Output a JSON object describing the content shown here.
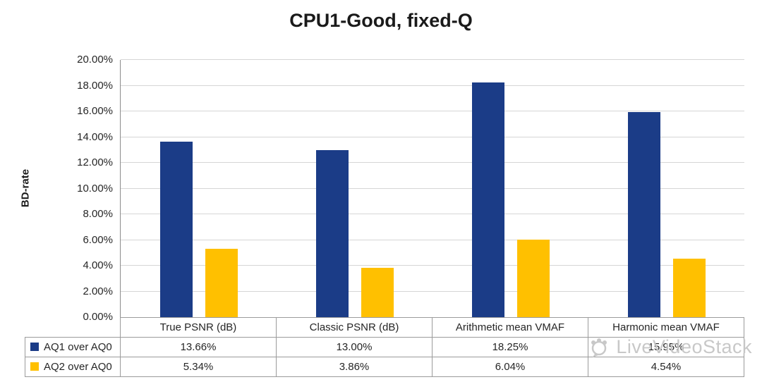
{
  "chart_data": {
    "type": "bar",
    "title": "CPU1-Good, fixed-Q",
    "xlabel": "",
    "ylabel": "BD-rate",
    "categories": [
      "True PSNR (dB)",
      "Classic PSNR (dB)",
      "Arithmetic mean VMAF",
      "Harmonic mean VMAF"
    ],
    "series": [
      {
        "name": "AQ1 over AQ0",
        "color": "#1b3c87",
        "values": [
          13.66,
          13.0,
          18.25,
          15.95
        ]
      },
      {
        "name": "AQ2 over AQ0",
        "color": "#ffc000",
        "values": [
          5.34,
          3.86,
          6.04,
          4.54
        ]
      }
    ],
    "ylim": [
      0,
      20
    ],
    "ytick_step": 2,
    "ytick_format": "percent-2-decimals",
    "grid": true,
    "legend_position": "data-table-left"
  },
  "watermark": {
    "text": "LiveVideoStack"
  }
}
